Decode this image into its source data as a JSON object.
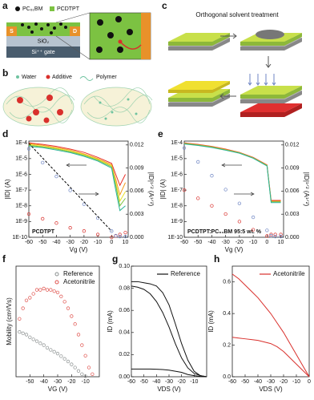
{
  "schematics": {
    "a": {
      "label": "a",
      "pcbm": "PC₆₁BM",
      "polymer": "PCDTPT",
      "source": "S",
      "drain": "D",
      "oxide": "SiO₂",
      "gate": "Si⁺⁺ gate"
    },
    "b": {
      "label": "b",
      "water": "Water",
      "additive": "Additive",
      "polymer": "Polymer"
    },
    "c": {
      "label": "c",
      "caption": "Orthogonal solvent treatment"
    }
  },
  "chart_data": [
    {
      "type": "line",
      "panel_label": "d",
      "annotation": "PCDTPT",
      "xlabel": "Vg (V)",
      "ylabel": "|ID| (A)",
      "y2label": "|ID|¹ᐟ² (A¹ᐟ²)",
      "x": [
        -60,
        -50,
        -40,
        -30,
        -20,
        -10,
        0,
        3,
        6,
        10
      ],
      "xlim": [
        -60,
        12
      ],
      "xticks": [
        -60,
        -50,
        -40,
        -30,
        -20,
        -10,
        0,
        10
      ],
      "ylog": true,
      "ylim": [
        1e-10,
        0.00013
      ],
      "yticks": [
        {
          "value": 1e-10,
          "label": "1E-10"
        },
        {
          "value": 1e-09,
          "label": "1E-9"
        },
        {
          "value": 1e-08,
          "label": "1E-8"
        },
        {
          "value": 1e-07,
          "label": "1E-7"
        },
        {
          "value": 1e-06,
          "label": "1E-6"
        },
        {
          "value": 1e-05,
          "label": "1E-5"
        },
        {
          "value": 0.0001,
          "label": "1E-4"
        }
      ],
      "y2lim": [
        0,
        0.0125
      ],
      "y2ticks": [
        {
          "value": 0,
          "label": "0.000"
        },
        {
          "value": 0.003,
          "label": "0.003"
        },
        {
          "value": 0.006,
          "label": "0.006"
        },
        {
          "value": 0.009,
          "label": "0.009"
        },
        {
          "value": 0.012,
          "label": "0.012"
        }
      ],
      "series": [
        {
          "color": "#e8312a",
          "values": [
            0.0001,
            8e-05,
            6e-05,
            4e-05,
            2.5e-05,
            1.2e-05,
            5e-06,
            1e-06,
            2e-07,
            1e-06
          ]
        },
        {
          "color": "#f39a1e",
          "values": [
            9e-05,
            7e-05,
            5e-05,
            3.5e-05,
            2e-05,
            1e-05,
            4e-06,
            5e-07,
            5e-08,
            3e-07
          ]
        },
        {
          "color": "#e9e12a",
          "values": [
            8e-05,
            6e-05,
            4.5e-05,
            3e-05,
            1.8e-05,
            9e-06,
            3.5e-06,
            3e-07,
            2e-08,
            8e-08
          ]
        },
        {
          "color": "#7cc242",
          "values": [
            7e-05,
            5.5e-05,
            4e-05,
            2.7e-05,
            1.6e-05,
            8e-06,
            3e-06,
            2e-07,
            1e-08,
            3e-08
          ]
        },
        {
          "color": "#2bb39a",
          "values": [
            6e-05,
            5e-05,
            3.5e-05,
            2.4e-05,
            1.4e-05,
            7e-06,
            2.5e-06,
            1e-07,
            5e-09,
            1e-08
          ]
        },
        {
          "color": "#d9302c",
          "marker": "circle",
          "values": [
            3e-09,
            1.5e-09,
            8e-10,
            4e-10,
            2.5e-10,
            1.5e-10,
            1e-10,
            1.2e-10,
            1.5e-10,
            2e-10
          ]
        },
        {
          "color": "#6f86c4",
          "marker": "circle",
          "axis": "y2",
          "values": [
            0.0115,
            0.0097,
            0.0079,
            0.0061,
            0.0043,
            0.0025,
            0.0008,
            0.0002,
            0.0001,
            0.0001
          ]
        },
        {
          "color": "#000000",
          "dash": true,
          "axis": "y2",
          "values": [
            0.0122,
            0.0103,
            0.0084,
            0.0065,
            0.0046,
            0.0027,
            0.0008,
            null,
            null,
            null
          ]
        }
      ]
    },
    {
      "type": "line",
      "panel_label": "e",
      "annotation": "PCDTPT:PC₆₁BM 95:5 wt. %",
      "xlabel": "Vg (V)",
      "ylabel": "|ID| (A)",
      "y2label": "|ID|¹ᐟ² (A¹ᐟ²)",
      "x": [
        -60,
        -50,
        -40,
        -30,
        -20,
        -10,
        0,
        3,
        6,
        10
      ],
      "xlim": [
        -60,
        12
      ],
      "xticks": [
        -60,
        -50,
        -40,
        -30,
        -20,
        -10,
        0,
        10
      ],
      "ylog": true,
      "ylim": [
        1e-10,
        0.00013
      ],
      "yticks": [
        {
          "value": 1e-10,
          "label": "1E-10"
        },
        {
          "value": 1e-09,
          "label": "1E-9"
        },
        {
          "value": 1e-08,
          "label": "1E-8"
        },
        {
          "value": 1e-07,
          "label": "1E-7"
        },
        {
          "value": 1e-06,
          "label": "1E-6"
        },
        {
          "value": 1e-05,
          "label": "1E-5"
        },
        {
          "value": 0.0001,
          "label": "1E-4"
        }
      ],
      "y2lim": [
        0,
        0.0125
      ],
      "y2ticks": [
        {
          "value": 0,
          "label": "0.000"
        },
        {
          "value": 0.003,
          "label": "0.003"
        },
        {
          "value": 0.006,
          "label": "0.006"
        },
        {
          "value": 0.009,
          "label": "0.009"
        },
        {
          "value": 0.012,
          "label": "0.012"
        }
      ],
      "series": [
        {
          "color": "#e8312a",
          "values": [
            0.0001,
            8e-05,
            6e-05,
            4e-05,
            2.5e-05,
            1.2e-05,
            4e-06,
            2.2e-08,
            2.2e-08,
            2.2e-08
          ]
        },
        {
          "color": "#f39a1e",
          "values": [
            9.5e-05,
            7.6e-05,
            5.7e-05,
            3.8e-05,
            2.4e-05,
            1.15e-05,
            3.8e-06,
            2e-08,
            2e-08,
            2e-08
          ]
        },
        {
          "color": "#7cc242",
          "values": [
            9e-05,
            7.2e-05,
            5.4e-05,
            3.6e-05,
            2.3e-05,
            1.1e-05,
            3.6e-06,
            1.8e-08,
            1.8e-08,
            1.8e-08
          ]
        },
        {
          "color": "#2bb39a",
          "values": [
            8.5e-05,
            6.8e-05,
            5.1e-05,
            3.4e-05,
            2.2e-05,
            1.05e-05,
            3.4e-06,
            1.6e-08,
            1.6e-08,
            1.6e-08
          ]
        },
        {
          "color": "#d9302c",
          "marker": "circle",
          "values": [
            1e-07,
            3e-08,
            1e-08,
            3e-09,
            1e-09,
            3e-10,
            1.2e-10,
            1.5e-10,
            1.5e-10,
            1.5e-10
          ]
        },
        {
          "color": "#6f86c4",
          "marker": "circle",
          "axis": "y2",
          "values": [
            0.0116,
            0.0098,
            0.008,
            0.0062,
            0.0044,
            0.0026,
            0.0009,
            0.0002,
            0.0001,
            0.0001
          ]
        }
      ]
    },
    {
      "type": "scatter",
      "panel_label": "f",
      "xlabel": "VG (V)",
      "ylabel": "Mobility (cm²/Vs)",
      "xlim": [
        -60,
        0
      ],
      "xticks": [
        -50,
        -40,
        -30,
        -20,
        -10
      ],
      "ylim": [
        0,
        4.2
      ],
      "legend": "top-right",
      "series": [
        {
          "name": "Reference",
          "color": "#8a8f8f",
          "x": [
            -57.5,
            -55,
            -52.5,
            -50,
            -47.5,
            -45,
            -42.5,
            -40,
            -37.5,
            -35,
            -32.5,
            -30,
            -27.5,
            -25,
            -22.5,
            -20,
            -17.5,
            -15,
            -12.5,
            -10
          ],
          "values": [
            1.7,
            1.65,
            1.6,
            1.5,
            1.42,
            1.35,
            1.27,
            1.2,
            1.1,
            1.02,
            0.95,
            0.88,
            0.78,
            0.68,
            0.58,
            0.47,
            0.35,
            0.22,
            0.1,
            0.02
          ]
        },
        {
          "name": "Acetonitrile",
          "color": "#e0524d",
          "x": [
            -57.5,
            -55,
            -52.5,
            -50,
            -47.5,
            -45,
            -42.5,
            -40,
            -37.5,
            -35,
            -32.5,
            -30,
            -27.5,
            -25,
            -22.5,
            -20,
            -17.5,
            -15,
            -12.5,
            -10,
            -7.5,
            -5
          ],
          "values": [
            2.2,
            2.6,
            2.9,
            3.0,
            3.15,
            3.3,
            3.3,
            3.35,
            3.3,
            3.3,
            3.25,
            3.2,
            3.05,
            2.85,
            2.6,
            2.3,
            2.0,
            1.6,
            1.2,
            0.8,
            0.35,
            0.1
          ]
        }
      ]
    },
    {
      "type": "line",
      "panel_label": "g",
      "xlabel": "VDS (V)",
      "ylabel": "ID (mA)",
      "x": [
        -60,
        -55,
        -50,
        -45,
        -40,
        -35,
        -30,
        -25,
        -20,
        -15,
        -10,
        -5,
        0
      ],
      "xlim": [
        -60,
        0
      ],
      "xticks": [
        -60,
        -50,
        -40,
        -30,
        -20,
        -10
      ],
      "ylim": [
        0,
        0.1
      ],
      "yticks": [
        {
          "value": 0,
          "label": "0.00"
        },
        {
          "value": 0.02,
          "label": "0.02"
        },
        {
          "value": 0.04,
          "label": "0.04"
        },
        {
          "value": 0.06,
          "label": "0.06"
        },
        {
          "value": 0.08,
          "label": "0.08"
        },
        {
          "value": 0.1,
          "label": "0.10"
        }
      ],
      "legend": "top-right",
      "series": [
        {
          "name": "Reference",
          "color": "#111111",
          "values": [
            0.086,
            0.086,
            0.085,
            0.084,
            0.082,
            0.076,
            0.065,
            0.048,
            0.03,
            0.015,
            0.005,
            0.001,
            0
          ]
        },
        {
          "color": "#111111",
          "values": [
            0.082,
            0.081,
            0.079,
            0.075,
            0.068,
            0.058,
            0.045,
            0.03,
            0.017,
            0.008,
            0.003,
            0.001,
            0
          ]
        },
        {
          "color": "#111111",
          "values": [
            0.007,
            0.007,
            0.007,
            0.007,
            0.0068,
            0.0065,
            0.006,
            0.005,
            0.004,
            0.002,
            0.001,
            0.0003,
            0
          ]
        }
      ]
    },
    {
      "type": "line",
      "panel_label": "h",
      "xlabel": "VDS (V)",
      "ylabel": "ID (mA)",
      "x": [
        -60,
        -55,
        -50,
        -45,
        -40,
        -35,
        -30,
        -25,
        -20,
        -15,
        -10,
        -5,
        0
      ],
      "xlim": [
        -60,
        0
      ],
      "xticks": [
        -60,
        -50,
        -40,
        -30,
        -20,
        -10,
        0
      ],
      "ylim": [
        0,
        0.7
      ],
      "yticks": [
        {
          "value": 0,
          "label": "0.0"
        },
        {
          "value": 0.2,
          "label": "0.2"
        },
        {
          "value": 0.4,
          "label": "0.4"
        },
        {
          "value": 0.6,
          "label": "0.6"
        }
      ],
      "legend": "top-right",
      "series": [
        {
          "name": "Acetonitrile",
          "color": "#d9302c",
          "values": [
            0.65,
            0.62,
            0.58,
            0.54,
            0.5,
            0.45,
            0.4,
            0.34,
            0.28,
            0.21,
            0.14,
            0.07,
            0
          ]
        },
        {
          "color": "#d9302c",
          "values": [
            0.25,
            0.245,
            0.24,
            0.235,
            0.23,
            0.22,
            0.21,
            0.19,
            0.16,
            0.12,
            0.08,
            0.04,
            0
          ]
        }
      ]
    }
  ]
}
